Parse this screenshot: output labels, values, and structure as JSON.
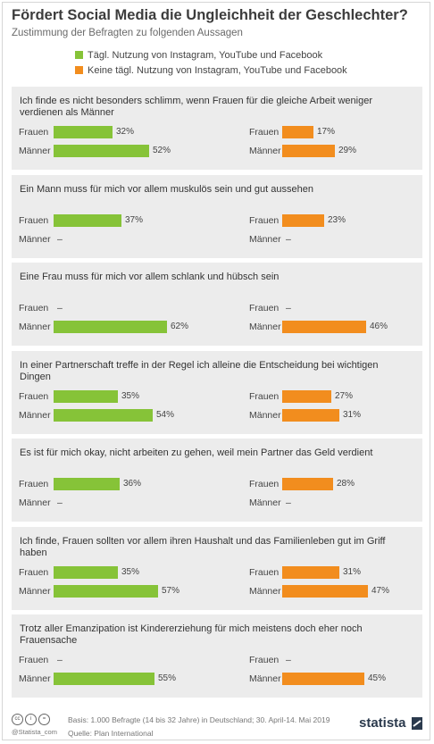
{
  "title": "Fördert Social Media die Ungleichheit der Geschlechter?",
  "subtitle": "Zustimmung der Befragten zu folgenden Aussagen",
  "colors": {
    "green": "#86c338",
    "orange": "#f28d1e",
    "panel": "#ececec"
  },
  "legend": [
    {
      "label": "Tägl. Nutzung von Instagram, YouTube und Facebook",
      "color": "#86c338"
    },
    {
      "label": "Keine tägl. Nutzung von Instagram, YouTube und Facebook",
      "color": "#f28d1e"
    }
  ],
  "chart_data": {
    "type": "bar",
    "unit": "%",
    "series": [
      {
        "name": "Tägl. Nutzung von Instagram, YouTube und Facebook"
      },
      {
        "name": "Keine tägl. Nutzung von Instagram, YouTube und Facebook"
      }
    ],
    "groups": [
      "Frauen",
      "Männer"
    ],
    "questions": [
      {
        "text": "Ich finde es nicht besonders schlimm, wenn Frauen für die gleiche Arbeit weniger verdienen als Männer",
        "daily": {
          "Frauen": 32,
          "Männer": 52
        },
        "non_daily": {
          "Frauen": 17,
          "Männer": 29
        }
      },
      {
        "text": "Ein Mann muss für mich vor allem muskulös sein und gut aussehen",
        "daily": {
          "Frauen": 37,
          "Männer": null
        },
        "non_daily": {
          "Frauen": 23,
          "Männer": null
        }
      },
      {
        "text": "Eine Frau muss für mich vor allem schlank und hübsch sein",
        "daily": {
          "Frauen": null,
          "Männer": 62
        },
        "non_daily": {
          "Frauen": null,
          "Männer": 46
        }
      },
      {
        "text": "In einer Partnerschaft treffe in der Regel ich alleine die Entscheidung bei wichtigen Dingen",
        "daily": {
          "Frauen": 35,
          "Männer": 54
        },
        "non_daily": {
          "Frauen": 27,
          "Männer": 31
        }
      },
      {
        "text": "Es ist für mich okay, nicht arbeiten zu gehen, weil mein Partner das Geld verdient",
        "daily": {
          "Frauen": 36,
          "Männer": null
        },
        "non_daily": {
          "Frauen": 28,
          "Männer": null
        }
      },
      {
        "text": "Ich finde, Frauen sollten vor allem ihren Haushalt und das Familienleben gut im Griff haben",
        "daily": {
          "Frauen": 35,
          "Männer": 57
        },
        "non_daily": {
          "Frauen": 31,
          "Männer": 47
        }
      },
      {
        "text": "Trotz aller Emanzipation ist Kindererziehung für mich meistens doch eher noch Frauensache",
        "daily": {
          "Frauen": null,
          "Männer": 55
        },
        "non_daily": {
          "Frauen": null,
          "Männer": 45
        }
      }
    ],
    "missing_label": "–"
  },
  "footer": {
    "basis": "Basis: 1.000 Befragte (14 bis 32 Jahre) in Deutschland; 30. April-14. Mai 2019",
    "source": "Quelle: Plan International",
    "handle": "@Statista_com",
    "logo": "statista"
  }
}
